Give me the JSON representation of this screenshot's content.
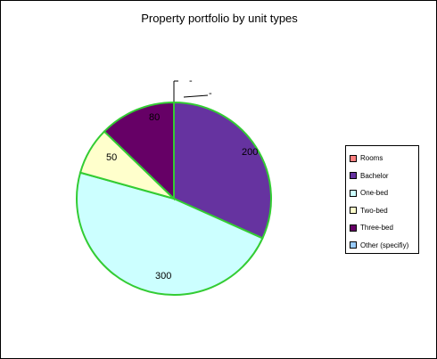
{
  "chart_data": {
    "type": "pie",
    "title": "Property portfolio by unit types",
    "categories": [
      "Rooms",
      "Bachelor",
      "One-bed",
      "Two-bed",
      "Three-bed",
      "Other (specifiy)"
    ],
    "values": [
      0,
      200,
      300,
      50,
      80,
      0
    ],
    "data_labels": [
      "-",
      "200",
      "300",
      "50",
      "80",
      "-"
    ],
    "colors": [
      "#ff8080",
      "#6633a0",
      "#ccffff",
      "#ffffcc",
      "#660066",
      "#99ccff"
    ],
    "slice_border_color": "#33cc33",
    "legend_position": "right"
  }
}
